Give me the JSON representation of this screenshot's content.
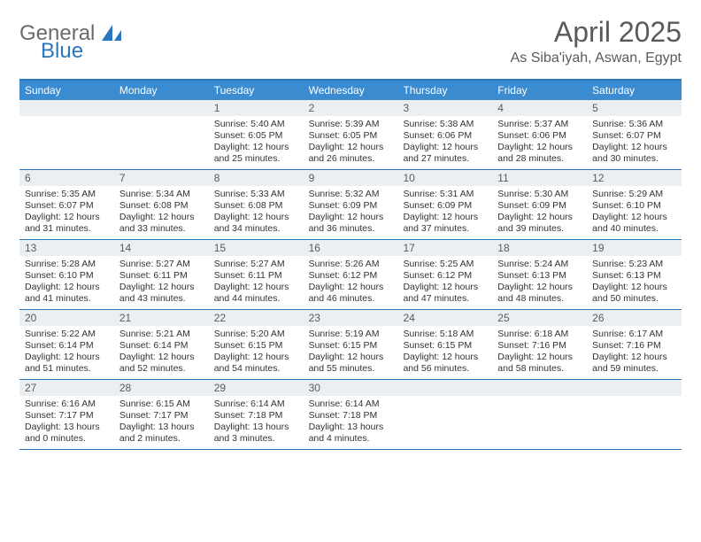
{
  "logo": {
    "text1": "General",
    "text2": "Blue"
  },
  "title": "April 2025",
  "location": "As Siba'iyah, Aswan, Egypt",
  "day_headers": [
    "Sunday",
    "Monday",
    "Tuesday",
    "Wednesday",
    "Thursday",
    "Friday",
    "Saturday"
  ],
  "colors": {
    "header_bg": "#3b8bd0",
    "border": "#2a77bd",
    "daynum_bg": "#eceff1",
    "text": "#333333",
    "title": "#5a5a5a"
  },
  "weeks": [
    [
      null,
      null,
      {
        "n": "1",
        "sr": "5:40 AM",
        "ss": "6:05 PM",
        "dl": "12 hours and 25 minutes."
      },
      {
        "n": "2",
        "sr": "5:39 AM",
        "ss": "6:05 PM",
        "dl": "12 hours and 26 minutes."
      },
      {
        "n": "3",
        "sr": "5:38 AM",
        "ss": "6:06 PM",
        "dl": "12 hours and 27 minutes."
      },
      {
        "n": "4",
        "sr": "5:37 AM",
        "ss": "6:06 PM",
        "dl": "12 hours and 28 minutes."
      },
      {
        "n": "5",
        "sr": "5:36 AM",
        "ss": "6:07 PM",
        "dl": "12 hours and 30 minutes."
      }
    ],
    [
      {
        "n": "6",
        "sr": "5:35 AM",
        "ss": "6:07 PM",
        "dl": "12 hours and 31 minutes."
      },
      {
        "n": "7",
        "sr": "5:34 AM",
        "ss": "6:08 PM",
        "dl": "12 hours and 33 minutes."
      },
      {
        "n": "8",
        "sr": "5:33 AM",
        "ss": "6:08 PM",
        "dl": "12 hours and 34 minutes."
      },
      {
        "n": "9",
        "sr": "5:32 AM",
        "ss": "6:09 PM",
        "dl": "12 hours and 36 minutes."
      },
      {
        "n": "10",
        "sr": "5:31 AM",
        "ss": "6:09 PM",
        "dl": "12 hours and 37 minutes."
      },
      {
        "n": "11",
        "sr": "5:30 AM",
        "ss": "6:09 PM",
        "dl": "12 hours and 39 minutes."
      },
      {
        "n": "12",
        "sr": "5:29 AM",
        "ss": "6:10 PM",
        "dl": "12 hours and 40 minutes."
      }
    ],
    [
      {
        "n": "13",
        "sr": "5:28 AM",
        "ss": "6:10 PM",
        "dl": "12 hours and 41 minutes."
      },
      {
        "n": "14",
        "sr": "5:27 AM",
        "ss": "6:11 PM",
        "dl": "12 hours and 43 minutes."
      },
      {
        "n": "15",
        "sr": "5:27 AM",
        "ss": "6:11 PM",
        "dl": "12 hours and 44 minutes."
      },
      {
        "n": "16",
        "sr": "5:26 AM",
        "ss": "6:12 PM",
        "dl": "12 hours and 46 minutes."
      },
      {
        "n": "17",
        "sr": "5:25 AM",
        "ss": "6:12 PM",
        "dl": "12 hours and 47 minutes."
      },
      {
        "n": "18",
        "sr": "5:24 AM",
        "ss": "6:13 PM",
        "dl": "12 hours and 48 minutes."
      },
      {
        "n": "19",
        "sr": "5:23 AM",
        "ss": "6:13 PM",
        "dl": "12 hours and 50 minutes."
      }
    ],
    [
      {
        "n": "20",
        "sr": "5:22 AM",
        "ss": "6:14 PM",
        "dl": "12 hours and 51 minutes."
      },
      {
        "n": "21",
        "sr": "5:21 AM",
        "ss": "6:14 PM",
        "dl": "12 hours and 52 minutes."
      },
      {
        "n": "22",
        "sr": "5:20 AM",
        "ss": "6:15 PM",
        "dl": "12 hours and 54 minutes."
      },
      {
        "n": "23",
        "sr": "5:19 AM",
        "ss": "6:15 PM",
        "dl": "12 hours and 55 minutes."
      },
      {
        "n": "24",
        "sr": "5:18 AM",
        "ss": "6:15 PM",
        "dl": "12 hours and 56 minutes."
      },
      {
        "n": "25",
        "sr": "6:18 AM",
        "ss": "7:16 PM",
        "dl": "12 hours and 58 minutes."
      },
      {
        "n": "26",
        "sr": "6:17 AM",
        "ss": "7:16 PM",
        "dl": "12 hours and 59 minutes."
      }
    ],
    [
      {
        "n": "27",
        "sr": "6:16 AM",
        "ss": "7:17 PM",
        "dl": "13 hours and 0 minutes."
      },
      {
        "n": "28",
        "sr": "6:15 AM",
        "ss": "7:17 PM",
        "dl": "13 hours and 2 minutes."
      },
      {
        "n": "29",
        "sr": "6:14 AM",
        "ss": "7:18 PM",
        "dl": "13 hours and 3 minutes."
      },
      {
        "n": "30",
        "sr": "6:14 AM",
        "ss": "7:18 PM",
        "dl": "13 hours and 4 minutes."
      },
      null,
      null,
      null
    ]
  ],
  "labels": {
    "sunrise": "Sunrise:",
    "sunset": "Sunset:",
    "daylight": "Daylight:"
  }
}
